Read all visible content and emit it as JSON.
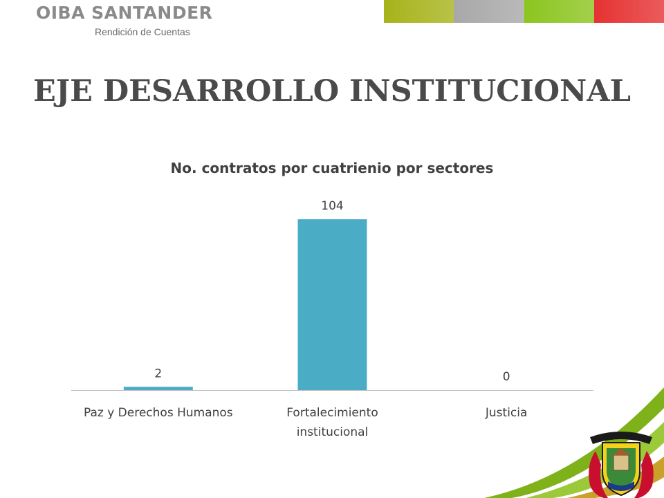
{
  "header": {
    "brand_title": "OIBA SANTANDER",
    "brand_subtitle": "Rendición de Cuentas",
    "color_tabs": [
      "#a7b31a",
      "#a8a8a8",
      "#8cc51f",
      "#e63232"
    ]
  },
  "slide": {
    "title": "EJE DESARROLLO INSTITUCIONAL"
  },
  "chart_data": {
    "type": "bar",
    "title": "No. contratos por cuatrienio por sectores",
    "categories": [
      "Paz y Derechos Humanos",
      "Fortalecimiento institucional",
      "Justicia"
    ],
    "values": [
      2,
      104,
      0
    ],
    "xlabel": "",
    "ylabel": "",
    "ylim": [
      0,
      104
    ],
    "grid": false,
    "legend": "none",
    "bar_color": "#4bacc6"
  },
  "decor": {
    "seal_icon": "coat-of-arms-icon",
    "swoosh_icon": "green-swoosh-icon"
  }
}
